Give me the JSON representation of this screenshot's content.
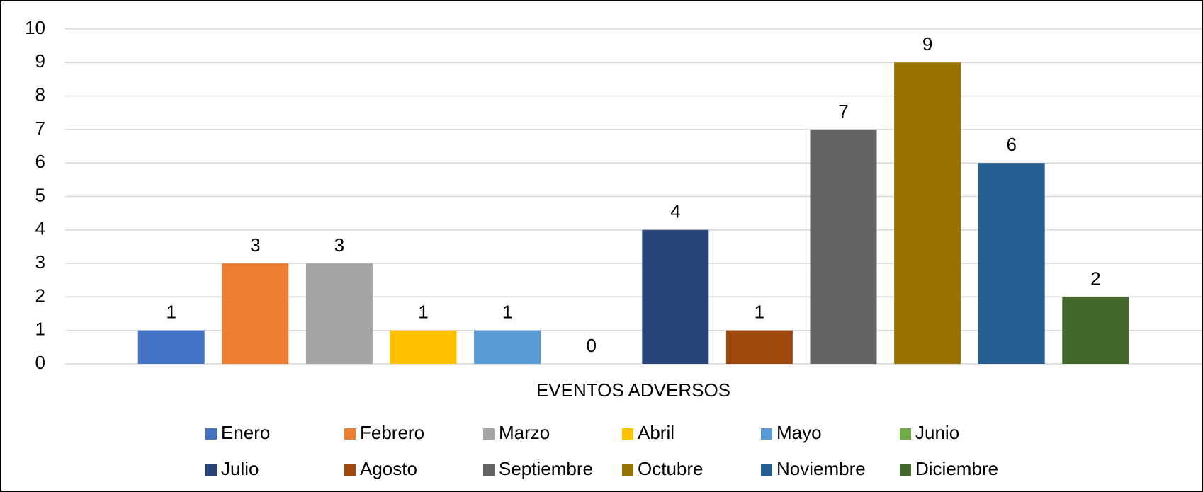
{
  "chart_data": {
    "type": "bar",
    "categories": [
      "EVENTOS ADVERSOS"
    ],
    "series": [
      {
        "name": "Enero",
        "color": "#4472c4",
        "values": [
          1
        ]
      },
      {
        "name": "Febrero",
        "color": "#ed7d31",
        "values": [
          3
        ]
      },
      {
        "name": "Marzo",
        "color": "#a5a5a5",
        "values": [
          3
        ]
      },
      {
        "name": "Abril",
        "color": "#ffc000",
        "values": [
          1
        ]
      },
      {
        "name": "Mayo",
        "color": "#5b9bd5",
        "values": [
          1
        ]
      },
      {
        "name": "Junio",
        "color": "#70ad47",
        "values": [
          0
        ]
      },
      {
        "name": "Julio",
        "color": "#264478",
        "values": [
          4
        ]
      },
      {
        "name": "Agosto",
        "color": "#9e480e",
        "values": [
          1
        ]
      },
      {
        "name": "Septiembre",
        "color": "#636363",
        "values": [
          7
        ]
      },
      {
        "name": "Octubre",
        "color": "#997300",
        "values": [
          9
        ]
      },
      {
        "name": "Noviembre",
        "color": "#255e91",
        "values": [
          6
        ]
      },
      {
        "name": "Diciembre",
        "color": "#43682b",
        "values": [
          2
        ]
      }
    ],
    "ylim": [
      0,
      10
    ],
    "yticks": [
      0,
      1,
      2,
      3,
      4,
      5,
      6,
      7,
      8,
      9,
      10
    ],
    "grid": true,
    "legend": "bottom"
  }
}
